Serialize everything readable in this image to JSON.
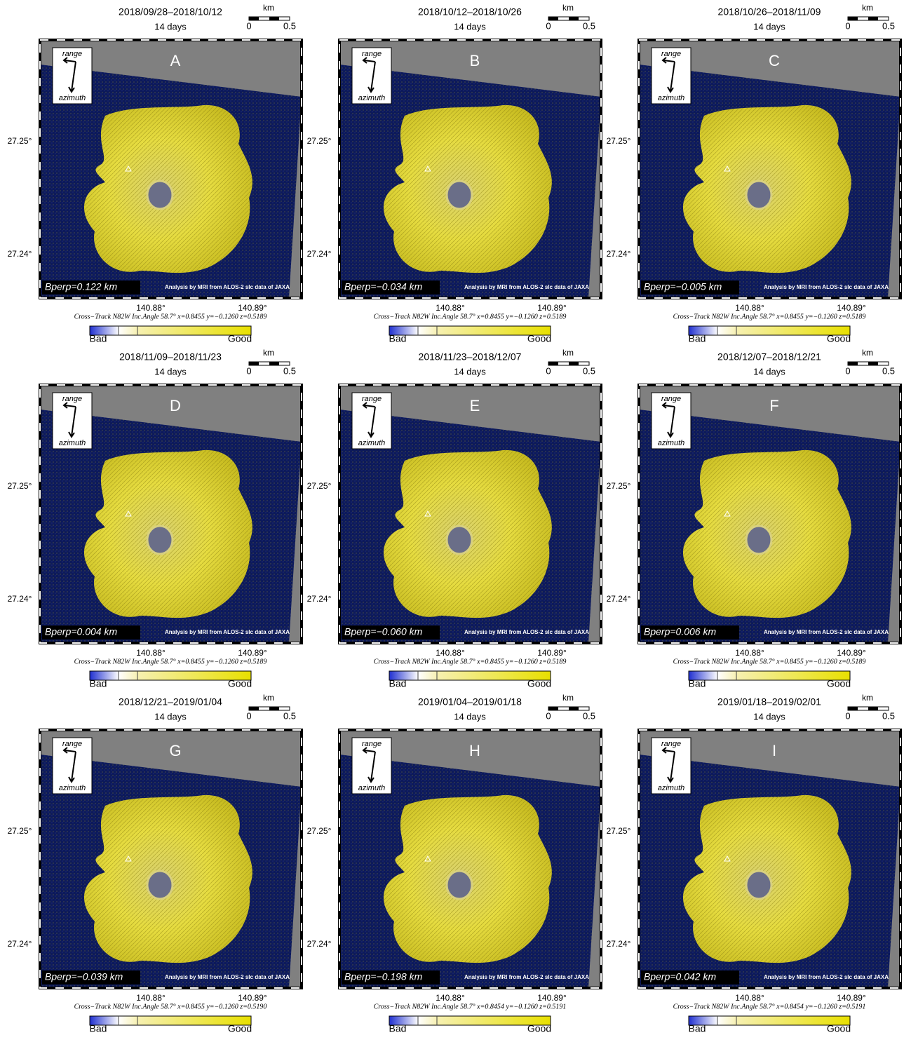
{
  "common": {
    "duration": "14 days",
    "scale_unit": "km",
    "scale_start": "0",
    "scale_end": "0.5",
    "range": "range",
    "azimuth": "azimuth",
    "lat_ticks": [
      "27.25°",
      "27.24°"
    ],
    "lon_ticks": [
      "140.88°",
      "140.89°"
    ],
    "credit": "Analysis by MRI from ALOS-2 slc data of JAXA",
    "colorbar_low": "Bad",
    "colorbar_high": "Good"
  },
  "panels": [
    {
      "label": "A",
      "period": "2018/09/28–2018/10/12",
      "bperp": "Bperp=0.122 km",
      "geometry": "Cross−Track N82W  Inc.Angle 58.7°  x=0.8455  y=−0.1260  z=0.5189"
    },
    {
      "label": "B",
      "period": "2018/10/12–2018/10/26",
      "bperp": "Bperp=−0.034 km",
      "geometry": "Cross−Track N82W  Inc.Angle 58.7°  x=0.8455  y=−0.1260  z=0.5189"
    },
    {
      "label": "C",
      "period": "2018/10/26–2018/11/09",
      "bperp": "Bperp=−0.005 km",
      "geometry": "Cross−Track N82W  Inc.Angle 58.7°  x=0.8455  y=−0.1260  z=0.5189"
    },
    {
      "label": "D",
      "period": "2018/11/09–2018/11/23",
      "bperp": "Bperp=0.004 km",
      "geometry": "Cross−Track N82W  Inc.Angle 58.7°  x=0.8455  y=−0.1260  z=0.5189"
    },
    {
      "label": "E",
      "period": "2018/11/23–2018/12/07",
      "bperp": "Bperp=−0.060 km",
      "geometry": "Cross−Track N82W  Inc.Angle 58.7°  x=0.8455  y=−0.1260  z=0.5189"
    },
    {
      "label": "F",
      "period": "2018/12/07–2018/12/21",
      "bperp": "Bperp=0.006 km",
      "geometry": "Cross−Track N82W  Inc.Angle 58.7°  x=0.8455  y=−0.1260  z=0.5189"
    },
    {
      "label": "G",
      "period": "2018/12/21–2019/01/04",
      "bperp": "Bperp=−0.039 km",
      "geometry": "Cross−Track N82W  Inc.Angle 58.7°  x=0.8455  y=−0.1260  z=0.5190"
    },
    {
      "label": "H",
      "period": "2019/01/04–2019/01/18",
      "bperp": "Bperp=−0.198 km",
      "geometry": "Cross−Track N82W  Inc.Angle 58.7°  x=0.8454  y=−0.1260  z=0.5191"
    },
    {
      "label": "I",
      "period": "2019/01/18–2019/02/01",
      "bperp": "Bperp=0.042 km",
      "geometry": "Cross−Track N82W  Inc.Angle 58.7°  x=0.8454  y=−0.1260  z=0.5191"
    }
  ]
}
